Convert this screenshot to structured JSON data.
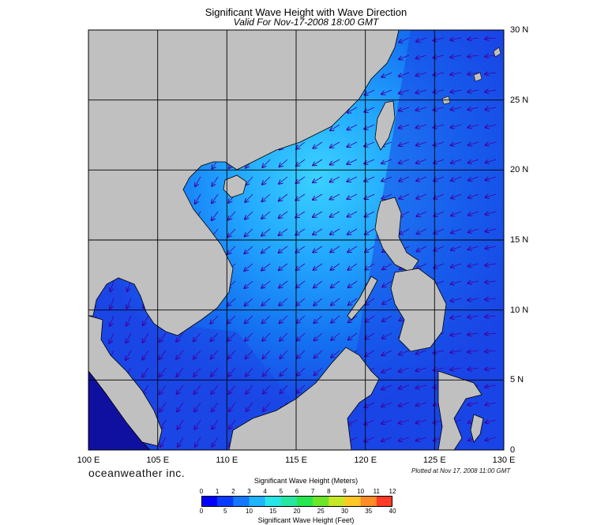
{
  "title": "Significant Wave Height with Wave Direction",
  "subtitle": "Valid For Nov-17-2008 18:00 GMT",
  "lon_labels": [
    "100 E",
    "105 E",
    "110 E",
    "115 E",
    "120 E",
    "125 E",
    "130 E"
  ],
  "lat_labels": [
    "30 N",
    "25 N",
    "20 N",
    "15 N",
    "10 N",
    "5 N",
    "0"
  ],
  "brand": "oceanweather inc.",
  "plotted": "Plotted at Nov 17, 2008 11:00 GMT",
  "legend": {
    "meters_title": "Significant Wave Height (Meters)",
    "meters_ticks": [
      "0",
      "1",
      "2",
      "3",
      "4",
      "5",
      "6",
      "7",
      "8",
      "9",
      "10",
      "11",
      "12"
    ],
    "feet_title": "Significant Wave Height (Feet)",
    "feet_ticks": [
      "0",
      "5",
      "10",
      "15",
      "20",
      "25",
      "30",
      "35",
      "40"
    ],
    "colors": [
      "#0000ff",
      "#0a3cff",
      "#1478ff",
      "#1eb4ff",
      "#28e6e6",
      "#28e6a0",
      "#28e650",
      "#6ee628",
      "#c8e628",
      "#ffc828",
      "#ff8c28",
      "#ff3c28"
    ]
  },
  "colors": {
    "land": "#c0c0c0",
    "ocean_deep": "#1a46e6",
    "ocean_light": "#3ad2ff",
    "grid": "#000000",
    "arrow": "#4000a0"
  },
  "chart_data": {
    "type": "heatmap",
    "x_range": [
      100,
      130
    ],
    "y_range": [
      0,
      30
    ],
    "x_unit": "E",
    "y_unit": "N",
    "quantity": "Significant Wave Height (m)",
    "wave_direction": "predominantly from the northeast"
  }
}
